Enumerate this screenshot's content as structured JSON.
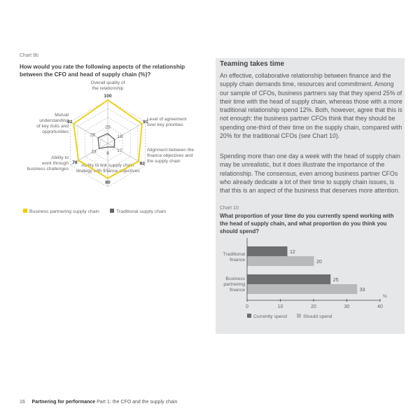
{
  "chart9b": {
    "label": "Chart 9b",
    "question": "How would you rate the following aspects of the relationship between the CFO and head of supply chain (%)?",
    "chart_data": {
      "type": "radar",
      "axes": [
        [
          "Overall quality of",
          "the relationship"
        ],
        [
          "Level of agreement",
          "over key priorities"
        ],
        [
          "Alignment between the",
          "finance objectives and",
          "the supply chain"
        ],
        [
          "Ability to link supply chain",
          "strategy with finance objectives"
        ],
        [
          "Ability to",
          "work through",
          "business challenges"
        ],
        [
          "Mutual",
          "understanding",
          "of key risks and",
          "opportunities"
        ]
      ],
      "range": [
        0,
        100
      ],
      "series": [
        {
          "name": "Business partnering supply chain",
          "values": [
            100,
            91,
            82,
            80,
            78,
            91
          ],
          "color": "#f0cf00"
        },
        {
          "name": "Traditional supply chain",
          "values": [
            23,
            18,
            17,
            8,
            23,
            26
          ],
          "color": "#666666"
        }
      ],
      "legend": "bottom-left"
    }
  },
  "sidebar": {
    "title": "Teaming takes time",
    "paragraphs": [
      "An effective, collaborative relationship between finance and the supply chain demands time, resources and commitment. Among our sample of CFOs, business partners say that they spend 25% of their time with the head of supply chain, whereas those with a more traditional relationship spend 12%. Both, however, agree that this is not enough: the business partner CFOs think that they should be spending one-third of their time on the supply chain, compared with 20% for the traditional CFOs (see Chart 10).",
      "Spending more than one day a week with the head of supply chain may be unrealistic, but it does illustrate the importance of the relationship. The consensus, even among business partner CFOs who already dedicate a lot of their time to supply chain issues, is that this is an aspect of the business that deserves more attention."
    ],
    "background": "#e6e7e9"
  },
  "chart10": {
    "label": "Chart 10",
    "question": "What proportion of your time do you currently spend working with the head of supply chain, and what proportion do you think you should spend?",
    "chart_data": {
      "type": "bar",
      "orientation": "horizontal",
      "categories": [
        [
          "Traditional",
          "finance"
        ],
        [
          "Business",
          "partnering",
          "finance"
        ]
      ],
      "series": [
        {
          "name": "Currently spend",
          "values": [
            12,
            25
          ],
          "color": "#6d6e70"
        },
        {
          "name": "Should spend",
          "values": [
            20,
            33
          ],
          "color": "#b8b9bb"
        }
      ],
      "xlim": [
        0,
        40
      ],
      "xticks": [
        "0",
        "10",
        "20",
        "30",
        "40"
      ],
      "xunit": "%",
      "legend": "bottom"
    }
  },
  "footer": {
    "page_number": "16",
    "publication": "Partnering for performance",
    "section": "Part 1: the CFO and the supply chain"
  }
}
